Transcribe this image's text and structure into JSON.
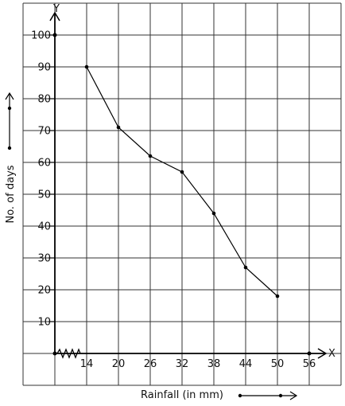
{
  "chart_data": {
    "type": "line",
    "x": [
      14,
      20,
      26,
      32,
      38,
      44,
      50
    ],
    "y": [
      90,
      71,
      62,
      57,
      44,
      27,
      18
    ],
    "xlabel": "Rainfall (in mm)",
    "ylabel": "No. of days",
    "x_axis_letter": "X",
    "y_axis_letter": "Y",
    "x_ticks": [
      "14",
      "20",
      "26",
      "32",
      "38",
      "44",
      "50",
      "56"
    ],
    "y_ticks": [
      "10",
      "20",
      "30",
      "40",
      "50",
      "60",
      "70",
      "80",
      "90",
      "100"
    ],
    "xlim": [
      8,
      56
    ],
    "ylim": [
      0,
      100
    ],
    "grid": true,
    "axis_break_on_x": true,
    "line_color": "#000000"
  }
}
